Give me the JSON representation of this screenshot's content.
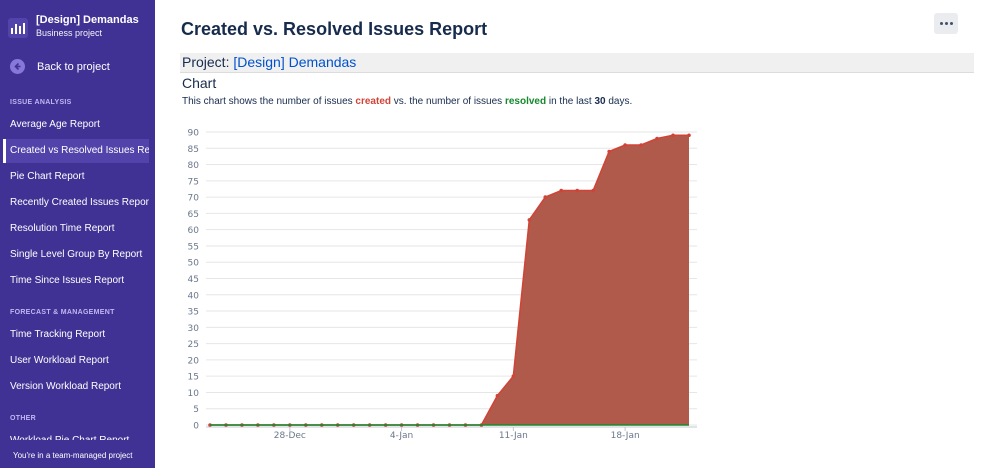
{
  "sidebar": {
    "project_name": "[Design] Demandas",
    "project_type": "Business project",
    "back_label": "Back to project",
    "sections": {
      "issue_analysis": "ISSUE ANALYSIS",
      "forecast": "FORECAST & MANAGEMENT",
      "other": "OTHER"
    },
    "items": [
      {
        "label": "Average Age Report"
      },
      {
        "label": "Created vs Resolved Issues Report"
      },
      {
        "label": "Pie Chart Report"
      },
      {
        "label": "Recently Created Issues Report"
      },
      {
        "label": "Resolution Time Report"
      },
      {
        "label": "Single Level Group By Report"
      },
      {
        "label": "Time Since Issues Report"
      },
      {
        "label": "Time Tracking Report"
      },
      {
        "label": "User Workload Report"
      },
      {
        "label": "Version Workload Report"
      },
      {
        "label": "Workload Pie Chart Report"
      }
    ],
    "footer": "You're in a team-managed project"
  },
  "main": {
    "title": "Created vs. Resolved Issues Report",
    "project_label": "Project:",
    "project_name": "[Design] Demandas",
    "chart_heading": "Chart",
    "desc": {
      "part1": "This chart shows the number of issues ",
      "created": "created",
      "part2": " vs. the number of issues ",
      "resolved": "resolved",
      "part3": " in the last ",
      "days": "30",
      "part4": " days."
    }
  },
  "colors": {
    "sidebar_bg": "#403294",
    "created": "#d04437",
    "resolved": "#14892c",
    "link": "#0052cc"
  },
  "chart_data": {
    "type": "area",
    "x_ticks": [
      "28-Dec",
      "4-Jan",
      "11-Jan",
      "18-Jan"
    ],
    "y_ticks": [
      0,
      5,
      10,
      15,
      20,
      25,
      30,
      35,
      40,
      45,
      50,
      55,
      60,
      65,
      70,
      75,
      80,
      85,
      90
    ],
    "ylim": [
      0,
      90
    ],
    "grid": true,
    "series": [
      {
        "name": "created",
        "color": "#d04437",
        "x": [
          "2022-12-23",
          "2022-12-24",
          "2022-12-25",
          "2022-12-26",
          "2022-12-27",
          "2022-12-28",
          "2022-12-29",
          "2022-12-30",
          "2022-12-31",
          "2023-01-01",
          "2023-01-02",
          "2023-01-03",
          "2023-01-04",
          "2023-01-05",
          "2023-01-06",
          "2023-01-07",
          "2023-01-08",
          "2023-01-09",
          "2023-01-10",
          "2023-01-11",
          "2023-01-12",
          "2023-01-13",
          "2023-01-14",
          "2023-01-15",
          "2023-01-16",
          "2023-01-17",
          "2023-01-18",
          "2023-01-19",
          "2023-01-20",
          "2023-01-21",
          "2023-01-22"
        ],
        "values": [
          0,
          0,
          0,
          0,
          0,
          0,
          0,
          0,
          0,
          0,
          0,
          0,
          0,
          0,
          0,
          0,
          0,
          0,
          9,
          15,
          63,
          70,
          72,
          72,
          72,
          84,
          86,
          86,
          88,
          89,
          89
        ]
      },
      {
        "name": "resolved",
        "color": "#14892c",
        "x": [
          "2022-12-23",
          "2023-01-22"
        ],
        "values": [
          0,
          0
        ]
      }
    ]
  }
}
